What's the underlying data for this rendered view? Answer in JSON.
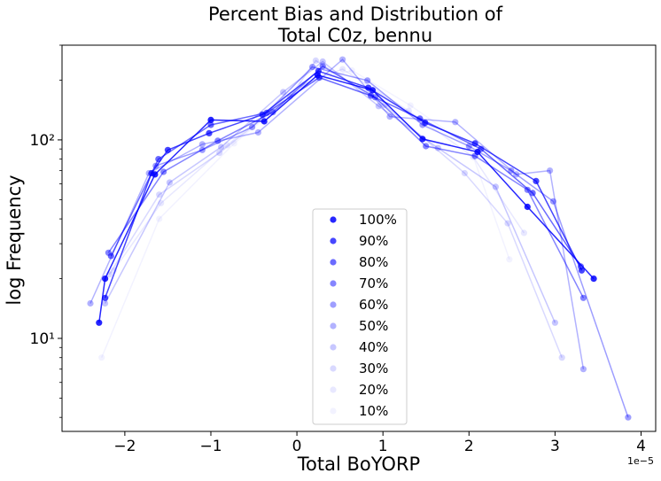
{
  "chart_data": {
    "type": "line",
    "title_lines": [
      "Percent Bias and Distribution of",
      "Total C0z, bennu"
    ],
    "xlabel": "Total BoYORP",
    "ylabel": "log Frequency",
    "x_offset_label": "1e−5",
    "x_scale_factor": 1e-05,
    "xlim": [
      -2.73,
      4.17
    ],
    "ylim": [
      3.4,
      300
    ],
    "yscale": "log",
    "grid": false,
    "legend_position": "lower center",
    "x_ticks": [
      {
        "value": -2,
        "label": "−2"
      },
      {
        "value": -1,
        "label": "−1"
      },
      {
        "value": 0,
        "label": "0"
      },
      {
        "value": 1,
        "label": "1"
      },
      {
        "value": 2,
        "label": "2"
      },
      {
        "value": 3,
        "label": "3"
      },
      {
        "value": 4,
        "label": "4"
      }
    ],
    "y_ticks": [
      {
        "value": 10,
        "label": "10¹"
      },
      {
        "value": 100,
        "label": "10²"
      }
    ],
    "color": "#0000ff",
    "series": [
      {
        "name": "100%",
        "opacity": 0.85,
        "x": [
          -2.3,
          -2.23,
          -1.65,
          -1.0,
          -0.38,
          0.24,
          0.88,
          1.46,
          2.1,
          2.68,
          3.45
        ],
        "y": [
          12,
          20,
          67,
          126,
          124,
          212,
          178,
          101,
          87,
          46,
          20
        ]
      },
      {
        "name": "90%",
        "opacity": 0.72,
        "x": [
          -2.23,
          -1.69,
          -1.5,
          -1.02,
          -0.4,
          0.25,
          0.83,
          1.49,
          2.07,
          2.78,
          3.31
        ],
        "y": [
          16,
          68,
          89,
          108,
          134,
          222,
          183,
          122,
          96,
          62,
          22
        ]
      },
      {
        "name": "80%",
        "opacity": 0.58,
        "x": [
          -2.16,
          -1.61,
          -1.0,
          -0.35,
          0.26,
          0.86,
          1.43,
          2.14,
          2.74,
          3.3
        ],
        "y": [
          26,
          80,
          119,
          137,
          206,
          167,
          128,
          90,
          54,
          23
        ]
      },
      {
        "name": "70%",
        "opacity": 0.48,
        "x": [
          -2.19,
          -1.55,
          -0.92,
          -0.28,
          0.3,
          0.91,
          1.5,
          2.07,
          2.68,
          3.33
        ],
        "y": [
          27,
          69,
          99,
          138,
          235,
          164,
          93,
          83,
          56,
          16
        ]
      },
      {
        "name": "60%",
        "opacity": 0.38,
        "x": [
          -1.64,
          -1.1,
          -0.52,
          0.18,
          0.82,
          1.46,
          2.0,
          2.49,
          2.98,
          3.85
        ],
        "y": [
          74,
          89,
          116,
          233,
          199,
          119,
          93,
          70,
          49,
          4
        ]
      },
      {
        "name": "50%",
        "opacity": 0.3,
        "x": [
          -2.4,
          -1.72,
          -1.1,
          -0.45,
          0.53,
          1.08,
          1.84,
          2.55,
          2.94,
          3.33
        ],
        "y": [
          15,
          68,
          95,
          109,
          254,
          131,
          123,
          67,
          70,
          7
        ]
      },
      {
        "name": "40%",
        "opacity": 0.22,
        "x": [
          -2.23,
          -1.48,
          -0.88,
          -0.16,
          0.3,
          0.95,
          1.64,
          2.31,
          3.0
        ],
        "y": [
          15,
          61,
          92,
          174,
          248,
          148,
          91,
          58,
          12
        ]
      },
      {
        "name": "30%",
        "opacity": 0.15,
        "x": [
          -2.18,
          -1.6,
          -0.9,
          -0.08,
          0.22,
          1.02,
          1.95,
          2.45,
          3.08
        ],
        "y": [
          21,
          53,
          86,
          165,
          251,
          150,
          68,
          38,
          8
        ]
      },
      {
        "name": "20%",
        "opacity": 0.09,
        "x": [
          -2.13,
          -1.58,
          -0.81,
          0.06,
          0.53,
          1.3,
          2.05,
          2.64
        ],
        "y": [
          22,
          48,
          94,
          190,
          227,
          140,
          82,
          34
        ]
      },
      {
        "name": "10%",
        "opacity": 0.05,
        "x": [
          -2.27,
          -1.6,
          -0.73,
          0.1,
          0.64,
          1.32,
          2.01,
          2.47
        ],
        "y": [
          8,
          40,
          96,
          190,
          224,
          149,
          92,
          25
        ]
      }
    ]
  }
}
